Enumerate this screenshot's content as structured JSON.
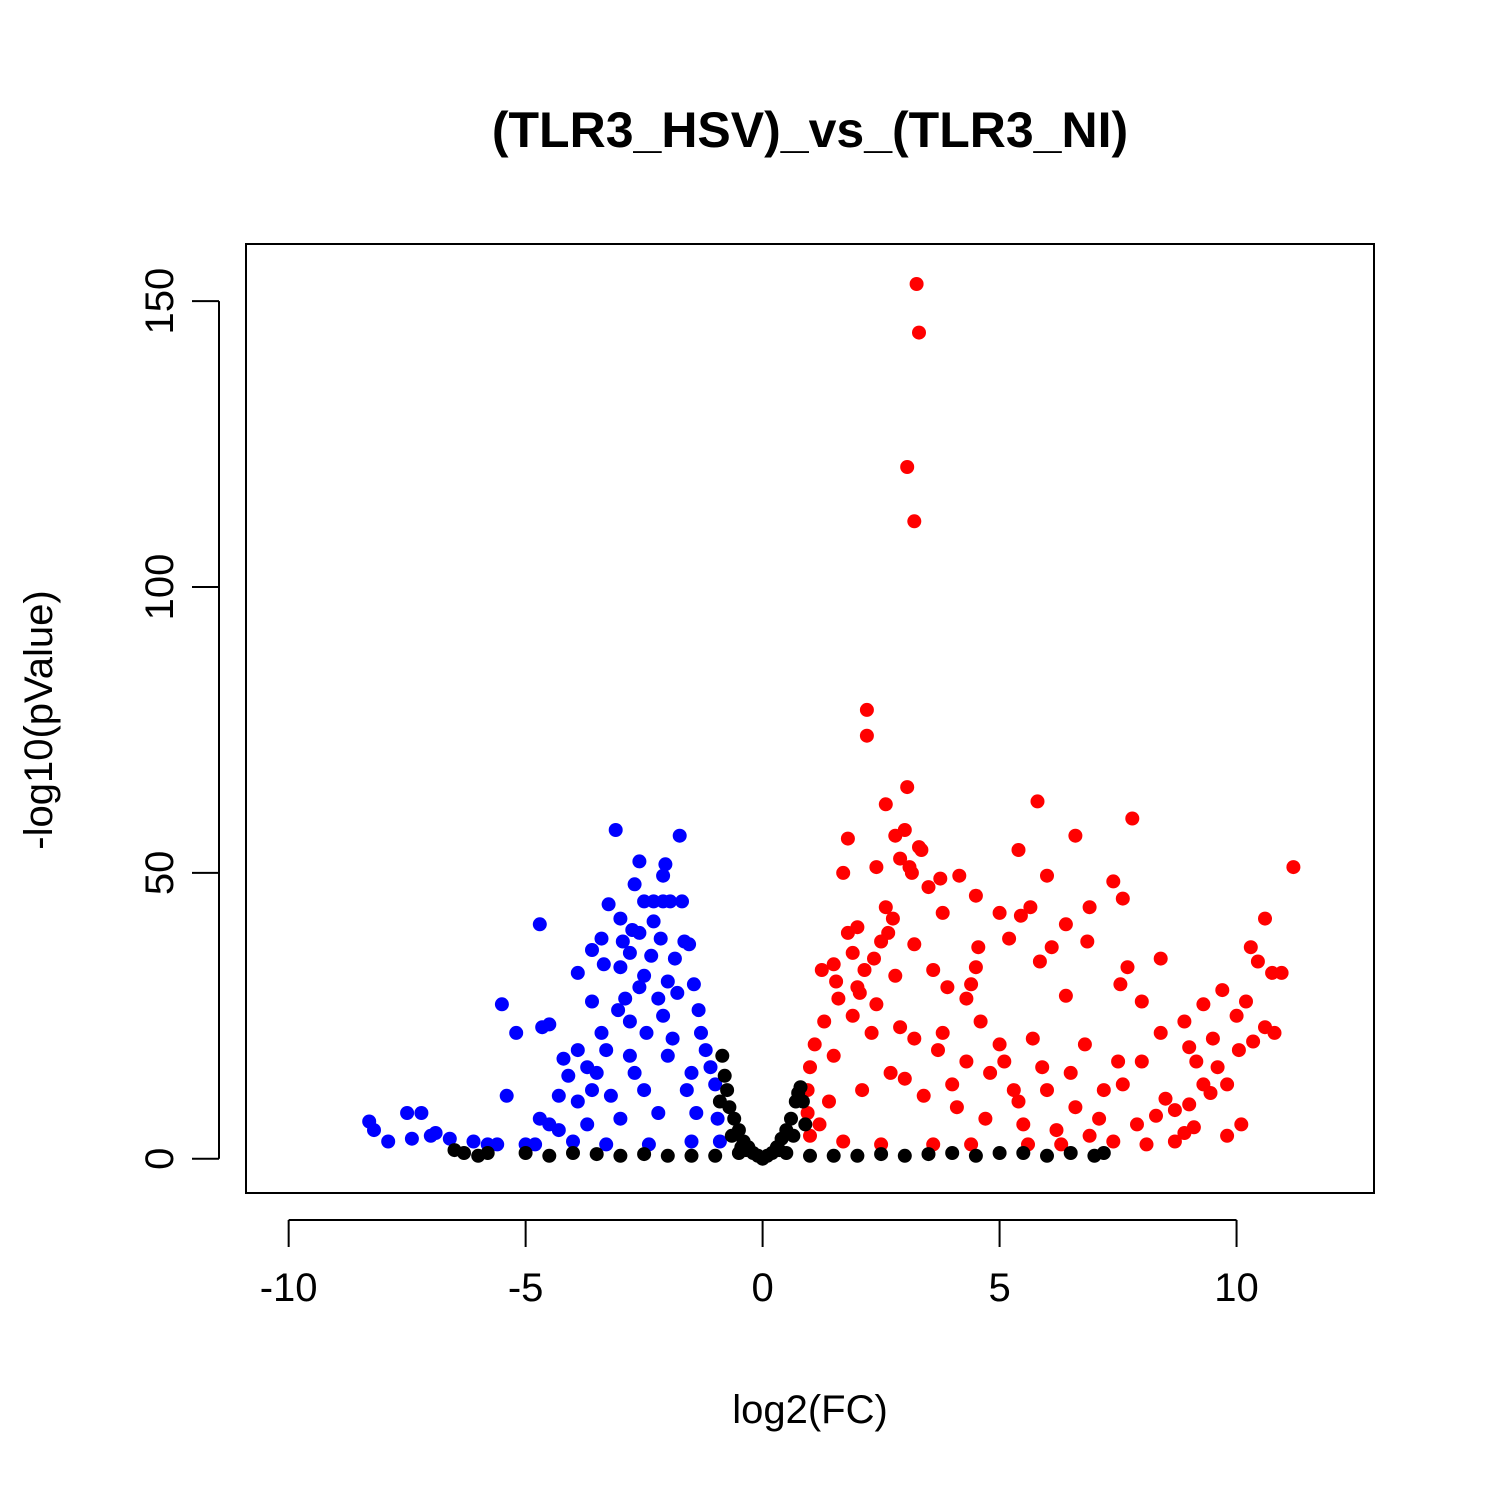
{
  "chart_data": {
    "type": "scatter",
    "title": "(TLR3_HSV)_vs_(TLR3_NI)",
    "xlabel": "log2(FC)",
    "ylabel": "-log10(pValue)",
    "xlim": [
      -10.9,
      12.9
    ],
    "ylim": [
      -6,
      160
    ],
    "x_ticks": [
      -10,
      -5,
      0,
      5,
      10
    ],
    "x_tick_labels": [
      "-10",
      "-5",
      "0",
      "5",
      "10"
    ],
    "y_ticks": [
      0,
      50,
      100,
      150
    ],
    "y_tick_labels": [
      "0",
      "50",
      "100",
      "150"
    ],
    "grid": false,
    "legend": "none",
    "colors": {
      "down": "#0000ff",
      "up": "#ff0000",
      "ns": "#000000"
    },
    "series": [
      {
        "color_key": "up",
        "points": [
          [
            3.25,
            153
          ],
          [
            3.3,
            144.5
          ],
          [
            3.05,
            121
          ],
          [
            3.2,
            111.5
          ],
          [
            2.2,
            78.5
          ],
          [
            2.2,
            74
          ],
          [
            3.05,
            65
          ],
          [
            2.6,
            62
          ],
          [
            5.8,
            62.5
          ],
          [
            7.8,
            59.5
          ],
          [
            1.8,
            56
          ],
          [
            3.0,
            57.5
          ],
          [
            2.8,
            56.5
          ],
          [
            6.6,
            56.5
          ],
          [
            3.3,
            54.5
          ],
          [
            3.35,
            54
          ],
          [
            5.4,
            54
          ],
          [
            11.2,
            51
          ],
          [
            2.9,
            52.5
          ],
          [
            2.4,
            51
          ],
          [
            1.7,
            50
          ],
          [
            3.1,
            51
          ],
          [
            3.15,
            50
          ],
          [
            4.15,
            49.5
          ],
          [
            6.0,
            49.5
          ],
          [
            7.4,
            48.5
          ],
          [
            3.75,
            49
          ],
          [
            3.5,
            47.5
          ],
          [
            4.5,
            46
          ],
          [
            7.6,
            45.5
          ],
          [
            6.9,
            44
          ],
          [
            5.65,
            44
          ],
          [
            2.6,
            44
          ],
          [
            5.0,
            43
          ],
          [
            3.8,
            43
          ],
          [
            5.45,
            42.5
          ],
          [
            4.55,
            37
          ],
          [
            6.4,
            41
          ],
          [
            10.6,
            42
          ],
          [
            2.75,
            42
          ],
          [
            2.65,
            39.5
          ],
          [
            2.0,
            40.5
          ],
          [
            1.8,
            39.5
          ],
          [
            3.2,
            37.5
          ],
          [
            5.2,
            38.5
          ],
          [
            6.1,
            37
          ],
          [
            8.4,
            35
          ],
          [
            10.3,
            37
          ],
          [
            10.45,
            34.5
          ],
          [
            10.75,
            32.5
          ],
          [
            10.95,
            32.5
          ],
          [
            7.7,
            33.5
          ],
          [
            6.85,
            38
          ],
          [
            5.85,
            34.5
          ],
          [
            4.5,
            33.5
          ],
          [
            3.6,
            33
          ],
          [
            2.35,
            35
          ],
          [
            2.8,
            32
          ],
          [
            8.0,
            27.5
          ],
          [
            6.4,
            28.5
          ],
          [
            4.4,
            30.5
          ],
          [
            3.9,
            30
          ],
          [
            7.55,
            30.5
          ],
          [
            9.7,
            29.5
          ],
          [
            10.2,
            27.5
          ],
          [
            9.3,
            27
          ],
          [
            10.0,
            25
          ],
          [
            8.9,
            24
          ],
          [
            8.4,
            22
          ],
          [
            10.6,
            23
          ],
          [
            10.8,
            22
          ],
          [
            9.5,
            21
          ],
          [
            9.0,
            19.5
          ],
          [
            10.35,
            20.5
          ],
          [
            8.0,
            17
          ],
          [
            10.05,
            19
          ],
          [
            9.15,
            17
          ],
          [
            9.6,
            16
          ],
          [
            9.8,
            13
          ],
          [
            9.45,
            11.5
          ],
          [
            9.0,
            9.5
          ],
          [
            10.1,
            6
          ],
          [
            9.8,
            4
          ],
          [
            9.1,
            5.5
          ],
          [
            8.5,
            10.5
          ],
          [
            7.2,
            12
          ],
          [
            7.6,
            13
          ],
          [
            6.5,
            15
          ],
          [
            5.9,
            16
          ],
          [
            5.1,
            17
          ],
          [
            4.8,
            15
          ],
          [
            4.3,
            17
          ],
          [
            3.7,
            19
          ],
          [
            3.2,
            21
          ],
          [
            2.9,
            23
          ],
          [
            2.3,
            22
          ],
          [
            1.9,
            25
          ],
          [
            1.6,
            28
          ],
          [
            1.3,
            24
          ],
          [
            1.1,
            20
          ],
          [
            1.0,
            16
          ],
          [
            0.95,
            12
          ],
          [
            0.95,
            8
          ],
          [
            1.0,
            4
          ],
          [
            1.5,
            18
          ],
          [
            2.0,
            30
          ],
          [
            2.4,
            27
          ],
          [
            2.7,
            15
          ],
          [
            3.4,
            11
          ],
          [
            4.1,
            9
          ],
          [
            4.7,
            7
          ],
          [
            5.5,
            6
          ],
          [
            6.2,
            5
          ],
          [
            6.9,
            4
          ],
          [
            7.4,
            3
          ],
          [
            8.1,
            2.5
          ],
          [
            8.7,
            3
          ],
          [
            8.9,
            4.5
          ],
          [
            7.1,
            7
          ],
          [
            6.6,
            9
          ],
          [
            5.3,
            12
          ],
          [
            4.0,
            13
          ],
          [
            3.0,
            14
          ],
          [
            2.1,
            12
          ],
          [
            1.4,
            10
          ],
          [
            1.2,
            6
          ],
          [
            1.7,
            3
          ],
          [
            2.5,
            2.5
          ],
          [
            3.6,
            2.5
          ],
          [
            4.4,
            2.5
          ],
          [
            5.6,
            2.5
          ],
          [
            6.3,
            2.5
          ],
          [
            1.25,
            33
          ],
          [
            1.5,
            34
          ],
          [
            1.9,
            36
          ],
          [
            2.15,
            33
          ],
          [
            2.5,
            38
          ],
          [
            2.05,
            29
          ],
          [
            1.55,
            31
          ],
          [
            4.3,
            28
          ],
          [
            5.0,
            20
          ],
          [
            5.7,
            21
          ],
          [
            6.8,
            20
          ],
          [
            7.5,
            17
          ],
          [
            6.0,
            12
          ],
          [
            5.4,
            10
          ],
          [
            3.8,
            22
          ],
          [
            4.6,
            24
          ],
          [
            7.9,
            6
          ],
          [
            8.3,
            7.5
          ],
          [
            8.7,
            8.5
          ],
          [
            9.3,
            13
          ]
        ]
      },
      {
        "color_key": "down",
        "points": [
          [
            -3.1,
            57.5
          ],
          [
            -1.75,
            56.5
          ],
          [
            -2.6,
            52
          ],
          [
            -2.05,
            51.5
          ],
          [
            -2.1,
            49.5
          ],
          [
            -2.7,
            48
          ],
          [
            -3.25,
            44.5
          ],
          [
            -2.5,
            45
          ],
          [
            -2.3,
            45
          ],
          [
            -2.1,
            45
          ],
          [
            -1.95,
            45
          ],
          [
            -1.7,
            45
          ],
          [
            -3.0,
            42
          ],
          [
            -2.3,
            41.5
          ],
          [
            -4.7,
            41
          ],
          [
            -2.75,
            40
          ],
          [
            -2.6,
            39.5
          ],
          [
            -3.4,
            38.5
          ],
          [
            -2.95,
            38
          ],
          [
            -2.15,
            38.5
          ],
          [
            -1.65,
            38
          ],
          [
            -1.55,
            37.5
          ],
          [
            -3.6,
            36.5
          ],
          [
            -2.8,
            36
          ],
          [
            -2.35,
            35.5
          ],
          [
            -1.85,
            35
          ],
          [
            -3.35,
            34
          ],
          [
            -3.0,
            33.5
          ],
          [
            -3.9,
            32.5
          ],
          [
            -2.5,
            32
          ],
          [
            -2.0,
            31
          ],
          [
            -1.45,
            30.5
          ],
          [
            -3.6,
            27.5
          ],
          [
            -2.9,
            28
          ],
          [
            -5.5,
            27
          ],
          [
            -4.5,
            23.5
          ],
          [
            -4.65,
            23
          ],
          [
            -5.2,
            22
          ],
          [
            -3.4,
            22
          ],
          [
            -2.8,
            24
          ],
          [
            -2.1,
            25
          ],
          [
            -1.35,
            26
          ],
          [
            -3.9,
            19
          ],
          [
            -4.2,
            17.5
          ],
          [
            -3.7,
            16
          ],
          [
            -4.1,
            14.5
          ],
          [
            -3.5,
            15
          ],
          [
            -2.8,
            18
          ],
          [
            -2.0,
            18
          ],
          [
            -1.2,
            19
          ],
          [
            -5.4,
            11
          ],
          [
            -4.3,
            11
          ],
          [
            -3.9,
            10
          ],
          [
            -3.2,
            11
          ],
          [
            -2.5,
            12
          ],
          [
            -1.6,
            12
          ],
          [
            -1.0,
            13
          ],
          [
            -4.7,
            7
          ],
          [
            -4.5,
            6
          ],
          [
            -4.3,
            5
          ],
          [
            -3.7,
            6
          ],
          [
            -3.0,
            7
          ],
          [
            -2.2,
            8
          ],
          [
            -1.4,
            8
          ],
          [
            -0.95,
            7
          ],
          [
            -0.9,
            3
          ],
          [
            -1.5,
            3
          ],
          [
            -2.4,
            2.5
          ],
          [
            -3.3,
            2.5
          ],
          [
            -4.0,
            3
          ],
          [
            -5.0,
            2.5
          ],
          [
            -5.6,
            2.5
          ],
          [
            -6.1,
            3
          ],
          [
            -6.6,
            3.5
          ],
          [
            -7.0,
            4
          ],
          [
            -7.2,
            8
          ],
          [
            -7.5,
            8
          ],
          [
            -7.4,
            3.5
          ],
          [
            -8.3,
            6.5
          ],
          [
            -8.2,
            5
          ],
          [
            -7.9,
            3
          ],
          [
            -5.8,
            2.5
          ],
          [
            -4.8,
            2.5
          ],
          [
            -6.9,
            4.5
          ],
          [
            -2.6,
            30
          ],
          [
            -2.2,
            28
          ],
          [
            -1.8,
            29
          ],
          [
            -3.05,
            26
          ],
          [
            -2.45,
            22
          ],
          [
            -1.9,
            21
          ],
          [
            -1.3,
            22
          ],
          [
            -3.3,
            19
          ],
          [
            -2.7,
            15
          ],
          [
            -1.5,
            15
          ],
          [
            -1.1,
            16
          ],
          [
            -3.6,
            12
          ]
        ]
      },
      {
        "color_key": "ns",
        "points": [
          [
            0,
            0
          ],
          [
            -0.1,
            0.5
          ],
          [
            0.1,
            0.5
          ],
          [
            -0.2,
            1
          ],
          [
            0.2,
            1
          ],
          [
            -0.3,
            2
          ],
          [
            0.3,
            2
          ],
          [
            -0.4,
            3
          ],
          [
            0.4,
            3.5
          ],
          [
            -0.5,
            5
          ],
          [
            0.5,
            5
          ],
          [
            -0.6,
            7
          ],
          [
            0.6,
            7
          ],
          [
            -0.7,
            9
          ],
          [
            0.7,
            10
          ],
          [
            -0.75,
            12
          ],
          [
            0.8,
            12.5
          ],
          [
            -0.8,
            14.5
          ],
          [
            -0.85,
            18
          ],
          [
            0.85,
            10
          ],
          [
            -0.9,
            10
          ],
          [
            0.9,
            6
          ],
          [
            -0.5,
            1
          ],
          [
            0.5,
            1
          ],
          [
            -1.5,
            0.5
          ],
          [
            1.5,
            0.5
          ],
          [
            -3,
            0.5
          ],
          [
            3,
            0.5
          ],
          [
            -4.5,
            0.5
          ],
          [
            4.5,
            0.5
          ],
          [
            -6,
            0.5
          ],
          [
            6,
            0.5
          ],
          [
            7,
            0.5
          ],
          [
            -6.5,
            1.5
          ],
          [
            -6.3,
            1
          ],
          [
            -5.8,
            1
          ],
          [
            -5,
            1
          ],
          [
            -4,
            1
          ],
          [
            -3.5,
            0.8
          ],
          [
            -2.5,
            0.8
          ],
          [
            -2,
            0.5
          ],
          [
            -1,
            0.5
          ],
          [
            1,
            0.5
          ],
          [
            2,
            0.5
          ],
          [
            2.5,
            0.8
          ],
          [
            3.5,
            0.8
          ],
          [
            4,
            1
          ],
          [
            5,
            1
          ],
          [
            5.5,
            1
          ],
          [
            6.5,
            1
          ],
          [
            7.2,
            1
          ],
          [
            -0.65,
            4
          ],
          [
            0.65,
            4
          ],
          [
            -0.35,
            1.5
          ],
          [
            0.35,
            1.5
          ],
          [
            0.75,
            11.5
          ],
          [
            -0.45,
            2
          ]
        ]
      }
    ]
  }
}
